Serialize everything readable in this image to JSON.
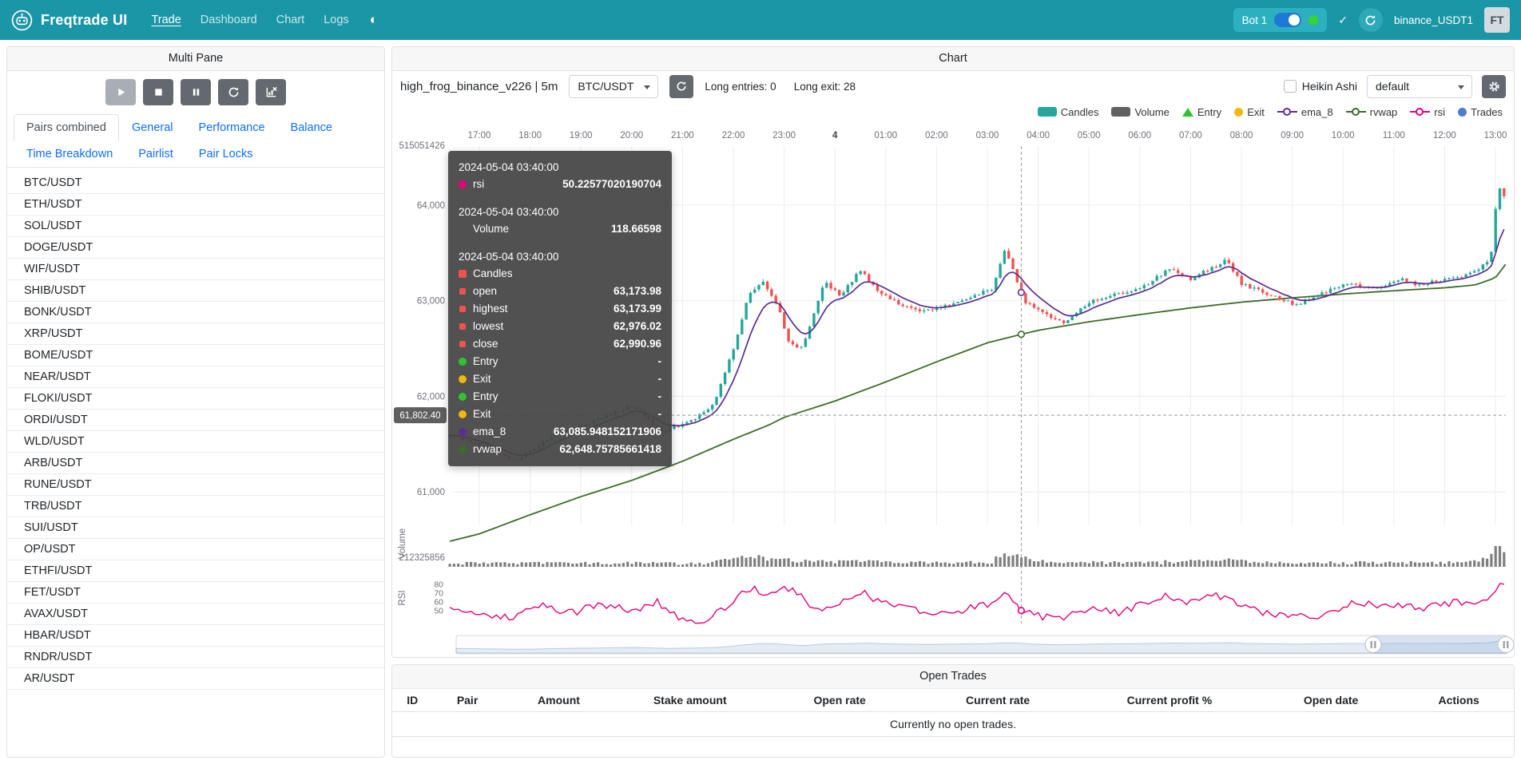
{
  "navbar": {
    "brand": "Freqtrade UI",
    "links": [
      {
        "label": "Trade",
        "active": true
      },
      {
        "label": "Dashboard",
        "active": false
      },
      {
        "label": "Chart",
        "active": false
      },
      {
        "label": "Logs",
        "active": false
      }
    ],
    "theme_icon": "◐",
    "bot_badge": {
      "label": "Bot 1"
    },
    "check_icon": "✓",
    "account_label": "binance_USDT1",
    "avatar_initials": "FT"
  },
  "multi_pane": {
    "header": "Multi Pane",
    "controls": [
      {
        "name": "start",
        "icon": "play",
        "disabled": true
      },
      {
        "name": "stop",
        "icon": "stop",
        "disabled": false
      },
      {
        "name": "pause",
        "icon": "pause",
        "disabled": false
      },
      {
        "name": "reload",
        "icon": "reload",
        "disabled": false
      },
      {
        "name": "clear-chart",
        "icon": "chartx",
        "disabled": false
      }
    ],
    "tabs": [
      {
        "label": "Pairs combined",
        "active": true
      },
      {
        "label": "General",
        "active": false
      },
      {
        "label": "Performance",
        "active": false
      },
      {
        "label": "Balance",
        "active": false
      },
      {
        "label": "Time Breakdown",
        "active": false
      },
      {
        "label": "Pairlist",
        "active": false
      },
      {
        "label": "Pair Locks",
        "active": false
      }
    ],
    "pairs": [
      "BTC/USDT",
      "ETH/USDT",
      "SOL/USDT",
      "DOGE/USDT",
      "WIF/USDT",
      "SHIB/USDT",
      "BONK/USDT",
      "XRP/USDT",
      "BOME/USDT",
      "NEAR/USDT",
      "FLOKI/USDT",
      "ORDI/USDT",
      "WLD/USDT",
      "ARB/USDT",
      "RUNE/USDT",
      "TRB/USDT",
      "SUI/USDT",
      "OP/USDT",
      "ETHFI/USDT",
      "FET/USDT",
      "AVAX/USDT",
      "HBAR/USDT",
      "RNDR/USDT",
      "AR/USDT"
    ]
  },
  "chart": {
    "header": "Chart",
    "strategy_title": "high_frog_binance_v226 | 5m",
    "pair_select_value": "BTC/USDT",
    "entries_label": "Long entries: 0",
    "exits_label": "Long exit: 28",
    "heikin_ashi_label": "Heikin Ashi",
    "plot_config_value": "default",
    "legend": [
      {
        "label": "Candles",
        "shape": "rect",
        "color": "#26a69a"
      },
      {
        "label": "Volume",
        "shape": "rect",
        "color": "#616161"
      },
      {
        "label": "Entry",
        "shape": "triangle",
        "color": "#2fc42f"
      },
      {
        "label": "Exit",
        "shape": "circle",
        "color": "#f1b70a"
      },
      {
        "label": "ema_8",
        "shape": "line",
        "color": "#5c2d91"
      },
      {
        "label": "rvwap",
        "shape": "line",
        "color": "#3e6b28"
      },
      {
        "label": "rsi",
        "shape": "line",
        "color": "#e6007a"
      },
      {
        "label": "Trades",
        "shape": "dot",
        "color": "#4f7bd0"
      }
    ],
    "tooltip": {
      "sections": [
        {
          "time": "2024-05-04 03:40:00",
          "rows": [
            {
              "marker": "#e6007a",
              "shape": "circle",
              "label": "rsi",
              "value": "50.22577020190704"
            }
          ]
        },
        {
          "time": "2024-05-04 03:40:00",
          "rows": [
            {
              "marker": null,
              "shape": "none",
              "label": "Volume",
              "value": "118.66598"
            }
          ]
        },
        {
          "time": "2024-05-04 03:40:00",
          "rows": [
            {
              "marker": "#ef5350",
              "shape": "square",
              "label": "Candles",
              "value": ""
            },
            {
              "marker": "#ef5350",
              "shape": "square-small",
              "label": "open",
              "value": "63,173.98"
            },
            {
              "marker": "#ef5350",
              "shape": "square-small",
              "label": "highest",
              "value": "63,173.99"
            },
            {
              "marker": "#ef5350",
              "shape": "square-small",
              "label": "lowest",
              "value": "62,976.02"
            },
            {
              "marker": "#ef5350",
              "shape": "square-small",
              "label": "close",
              "value": "62,990.96"
            },
            {
              "marker": "#2fc42f",
              "shape": "circle",
              "label": "Entry",
              "value": "-"
            },
            {
              "marker": "#f1b70a",
              "shape": "circle",
              "label": "Exit",
              "value": "-"
            },
            {
              "marker": "#2fc42f",
              "shape": "circle",
              "label": "Entry",
              "value": "-"
            },
            {
              "marker": "#f1b70a",
              "shape": "circle",
              "label": "Exit",
              "value": "-"
            },
            {
              "marker": "#5c2d91",
              "shape": "circle",
              "label": "ema_8",
              "value": "63,085.948152171906"
            },
            {
              "marker": "#3e6b28",
              "shape": "circle",
              "label": "rvwap",
              "value": "62,648.75785661418"
            }
          ]
        }
      ]
    }
  },
  "chart_data": {
    "type": "candlestick",
    "pair": "BTC/USDT",
    "timeframe": "5m",
    "x_labels": [
      "17:00",
      "18:00",
      "19:00",
      "20:00",
      "21:00",
      "22:00",
      "23:00",
      "4",
      "01:00",
      "02:00",
      "03:00",
      "04:00",
      "05:00",
      "06:00",
      "07:00",
      "08:00",
      "09:00",
      "10:00",
      "11:00",
      "12:00",
      "13:00"
    ],
    "y_labels": [
      "64,000",
      "63,000",
      "62,000",
      "61,000"
    ],
    "y_values": [
      64000,
      63000,
      62000,
      61000
    ],
    "top_axis_value": "515051426",
    "volume_axis_value": "212325856",
    "volume_pane_label": "Volume",
    "rsi_pane_label": "RSI",
    "rsi_ticks": [
      80,
      70,
      60,
      50
    ],
    "axis_pointer": {
      "price_label": "61,802.40",
      "price": 61802.4,
      "time_hours": 10.6667
    },
    "hover_markers": {
      "ema_8": 63085.95,
      "rvwap": 62648.76,
      "rsi": 50.23
    },
    "price_anchors": [
      [
        -0.6,
        61600
      ],
      [
        0,
        61500
      ],
      [
        0.7,
        61320
      ],
      [
        1.5,
        61600
      ],
      [
        2.3,
        61750
      ],
      [
        3,
        61900
      ],
      [
        3.6,
        61620
      ],
      [
        4.2,
        61750
      ],
      [
        4.6,
        61900
      ],
      [
        5.0,
        62500
      ],
      [
        5.3,
        63050
      ],
      [
        5.6,
        63200
      ],
      [
        5.9,
        62900
      ],
      [
        6.1,
        62550
      ],
      [
        6.35,
        62500
      ],
      [
        6.8,
        63200
      ],
      [
        7.1,
        63050
      ],
      [
        7.5,
        63320
      ],
      [
        7.8,
        63120
      ],
      [
        8.2,
        62980
      ],
      [
        8.7,
        62880
      ],
      [
        9.2,
        62950
      ],
      [
        9.7,
        63050
      ],
      [
        10.1,
        63120
      ],
      [
        10.35,
        63550
      ],
      [
        10.55,
        63260
      ],
      [
        10.67,
        63080
      ],
      [
        10.75,
        62990
      ],
      [
        11.0,
        62900
      ],
      [
        11.5,
        62760
      ],
      [
        12.0,
        62980
      ],
      [
        12.5,
        63060
      ],
      [
        13.0,
        63120
      ],
      [
        13.6,
        63340
      ],
      [
        14.0,
        63230
      ],
      [
        14.7,
        63420
      ],
      [
        15.0,
        63180
      ],
      [
        15.6,
        63050
      ],
      [
        16.1,
        62950
      ],
      [
        16.6,
        63080
      ],
      [
        17.1,
        63180
      ],
      [
        17.6,
        63120
      ],
      [
        18.1,
        63230
      ],
      [
        18.5,
        63160
      ],
      [
        19.0,
        63230
      ],
      [
        19.5,
        63280
      ],
      [
        19.9,
        63420
      ],
      [
        20.05,
        64200
      ],
      [
        20.2,
        64080
      ]
    ],
    "rvwap_anchors": [
      [
        -0.6,
        60480
      ],
      [
        0,
        60560
      ],
      [
        1,
        60760
      ],
      [
        2,
        60950
      ],
      [
        3,
        61120
      ],
      [
        4,
        61320
      ],
      [
        5,
        61550
      ],
      [
        5.7,
        61700
      ],
      [
        6,
        61780
      ],
      [
        7,
        61950
      ],
      [
        8,
        62150
      ],
      [
        9,
        62360
      ],
      [
        10,
        62560
      ],
      [
        10.67,
        62649
      ],
      [
        11,
        62690
      ],
      [
        12,
        62780
      ],
      [
        13,
        62855
      ],
      [
        14,
        62925
      ],
      [
        15,
        62985
      ],
      [
        16,
        63030
      ],
      [
        17,
        63070
      ],
      [
        18,
        63105
      ],
      [
        19,
        63135
      ],
      [
        19.6,
        63165
      ],
      [
        20,
        63240
      ],
      [
        20.2,
        63380
      ]
    ],
    "rsi_anchors": [
      [
        -0.6,
        52
      ],
      [
        0,
        48
      ],
      [
        0.6,
        42
      ],
      [
        1.2,
        56
      ],
      [
        1.8,
        47
      ],
      [
        2.4,
        58
      ],
      [
        3,
        50
      ],
      [
        3.5,
        60
      ],
      [
        4,
        40
      ],
      [
        4.4,
        37
      ],
      [
        4.8,
        52
      ],
      [
        5.1,
        68
      ],
      [
        5.4,
        76
      ],
      [
        5.7,
        68
      ],
      [
        6,
        78
      ],
      [
        6.2,
        72
      ],
      [
        6.5,
        58
      ],
      [
        6.9,
        50
      ],
      [
        7.2,
        62
      ],
      [
        7.5,
        72
      ],
      [
        7.9,
        60
      ],
      [
        8.4,
        54
      ],
      [
        8.9,
        48
      ],
      [
        9.3,
        44
      ],
      [
        9.7,
        54
      ],
      [
        10.1,
        58
      ],
      [
        10.35,
        72
      ],
      [
        10.67,
        50
      ],
      [
        11,
        44
      ],
      [
        11.4,
        40
      ],
      [
        11.8,
        48
      ],
      [
        12.2,
        54
      ],
      [
        12.6,
        47
      ],
      [
        13,
        57
      ],
      [
        13.5,
        66
      ],
      [
        13.9,
        58
      ],
      [
        14.4,
        68
      ],
      [
        14.8,
        62
      ],
      [
        15.2,
        52
      ],
      [
        15.7,
        44
      ],
      [
        16.1,
        48
      ],
      [
        16.5,
        42
      ],
      [
        16.9,
        52
      ],
      [
        17.3,
        60
      ],
      [
        17.7,
        54
      ],
      [
        18.1,
        58
      ],
      [
        18.5,
        51
      ],
      [
        18.9,
        57
      ],
      [
        19.3,
        60
      ],
      [
        19.7,
        56
      ],
      [
        19.95,
        68
      ],
      [
        20.1,
        82
      ],
      [
        20.2,
        78
      ]
    ],
    "volume_boost_anchors": [
      [
        -0.6,
        1
      ],
      [
        4.4,
        1
      ],
      [
        4.9,
        5
      ],
      [
        5.3,
        9
      ],
      [
        5.7,
        7
      ],
      [
        6.1,
        4
      ],
      [
        6.6,
        2
      ],
      [
        7.4,
        3
      ],
      [
        8,
        2
      ],
      [
        10.1,
        2
      ],
      [
        10.35,
        14
      ],
      [
        10.6,
        9
      ],
      [
        10.9,
        5
      ],
      [
        11.2,
        2
      ],
      [
        13.5,
        2
      ],
      [
        14.7,
        6
      ],
      [
        15,
        3
      ],
      [
        16,
        1.5
      ],
      [
        18,
        2
      ],
      [
        19.4,
        2
      ],
      [
        19.8,
        8
      ],
      [
        20.0,
        16
      ],
      [
        20.15,
        20
      ],
      [
        20.2,
        12
      ]
    ],
    "up_color": "#26a69a",
    "down_color": "#ef5350",
    "ema_color": "#5c2d91",
    "rvwap_color": "#3e6b28",
    "rsi_color": "#e6007a",
    "volume_color": "#7f7f7f"
  },
  "open_trades": {
    "header": "Open Trades",
    "columns": [
      "ID",
      "Pair",
      "Amount",
      "Stake amount",
      "Open rate",
      "Current rate",
      "Current profit %",
      "Open date",
      "Actions"
    ],
    "empty_message": "Currently no open trades."
  }
}
